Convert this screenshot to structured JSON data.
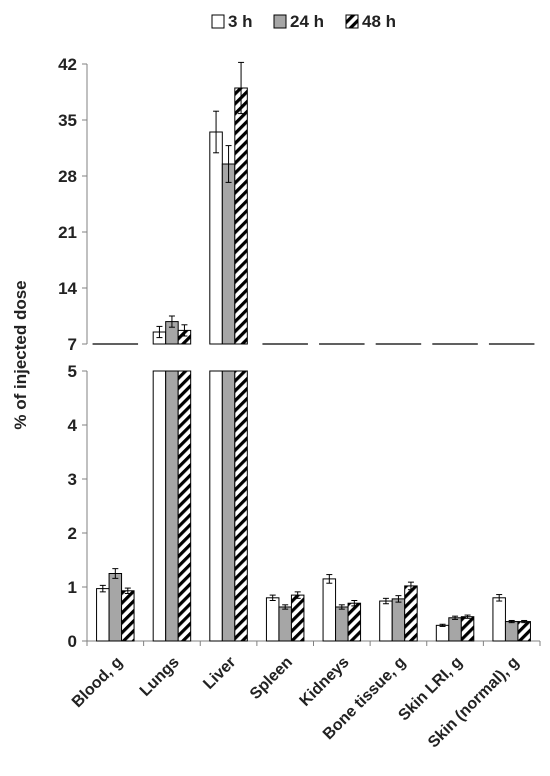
{
  "chart_data": {
    "type": "bar",
    "ylabel": "% of injected dose",
    "categories": [
      "Blood, g",
      "Lungs",
      "Liver",
      "Spleen",
      "Kidneys",
      "Bone tissue, g",
      "Skin LRI, g",
      "Skin (normal), g"
    ],
    "series": [
      {
        "name": "3 h",
        "values": [
          0.97,
          8.5,
          33.5,
          0.8,
          1.15,
          0.74,
          0.29,
          0.8
        ],
        "errors": [
          0.06,
          0.7,
          2.6,
          0.05,
          0.08,
          0.05,
          0.02,
          0.06
        ],
        "pattern": "white"
      },
      {
        "name": "24 h",
        "values": [
          1.25,
          9.8,
          29.5,
          0.63,
          0.63,
          0.78,
          0.43,
          0.36
        ],
        "errors": [
          0.09,
          0.7,
          2.3,
          0.04,
          0.04,
          0.06,
          0.03,
          0.02
        ],
        "pattern": "gray"
      },
      {
        "name": "48 h",
        "values": [
          0.93,
          8.7,
          39.0,
          0.85,
          0.7,
          1.02,
          0.45,
          0.36
        ],
        "errors": [
          0.05,
          0.7,
          3.2,
          0.06,
          0.05,
          0.07,
          0.03,
          0.02
        ],
        "pattern": "hatched"
      }
    ],
    "axis_break": true,
    "lower_panel": {
      "ylim": [
        0,
        5
      ],
      "ticks": [
        "0",
        "1",
        "2",
        "3",
        "4",
        "5"
      ]
    },
    "upper_panel": {
      "ylim": [
        7,
        42
      ],
      "ticks": [
        "7",
        "14",
        "21",
        "28",
        "35",
        "42"
      ]
    },
    "legend_position": "top",
    "grid": false,
    "colors": {
      "3 h": "#ffffff",
      "24 h": "#a6a6a6",
      "48 h": "#000000",
      "outline": "#000000"
    }
  }
}
